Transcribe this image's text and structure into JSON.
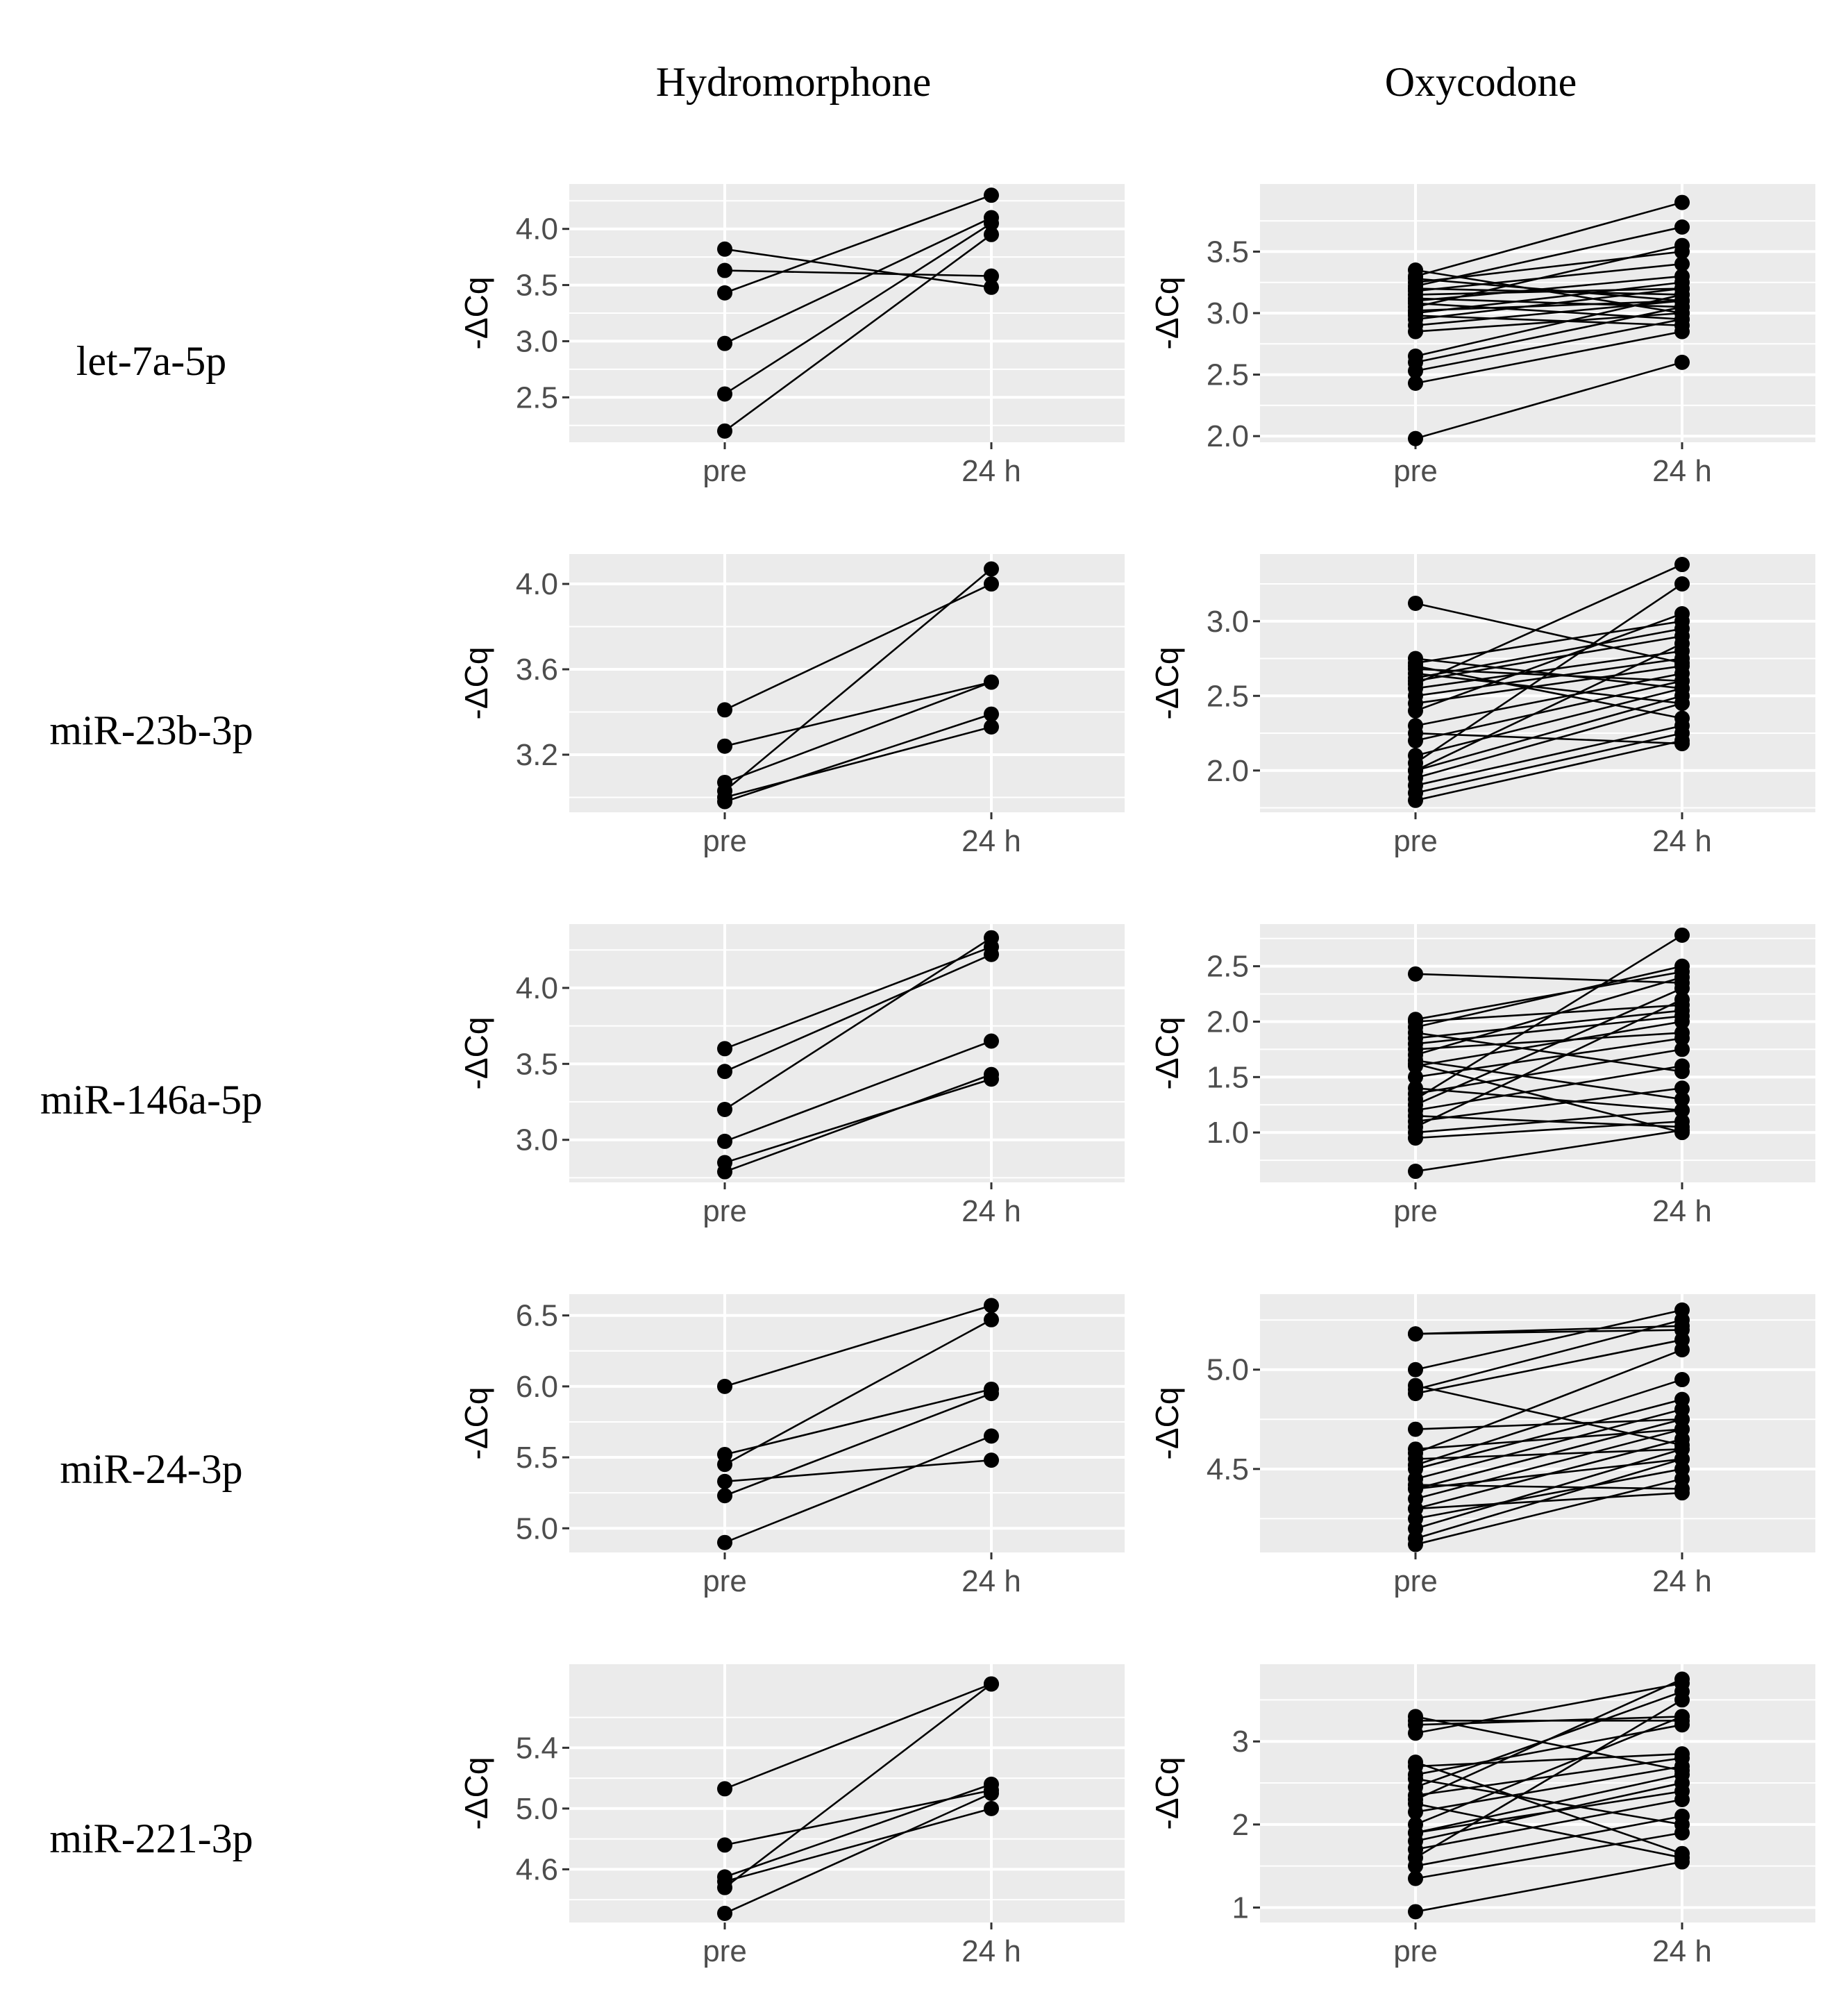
{
  "figure": {
    "columns": [
      "Hydromorphone",
      "Oxycodone"
    ],
    "rows": [
      "let-7a-5p",
      "miR-23b-3p",
      "miR-146a-5p",
      "miR-24-3p",
      "miR-221-3p"
    ]
  },
  "colors": {
    "panel": "#ebebeb",
    "grid": "#ffffff",
    "marks": "#000000",
    "tick_text": "#4d4d4d"
  },
  "chart_data": [
    {
      "type": "line",
      "row": "let-7a-5p",
      "column": "Hydromorphone",
      "categories": [
        "pre",
        "24 h"
      ],
      "ylabel": "-ΔCq",
      "ylim": [
        2.1,
        4.4
      ],
      "yticks": [
        "2.5",
        "3.0",
        "3.5",
        "4.0"
      ],
      "series": [
        [
          2.2,
          3.95
        ],
        [
          2.53,
          4.05
        ],
        [
          2.98,
          4.1
        ],
        [
          3.43,
          4.3
        ],
        [
          3.63,
          3.58
        ],
        [
          3.82,
          3.48
        ]
      ]
    },
    {
      "type": "line",
      "row": "let-7a-5p",
      "column": "Oxycodone",
      "categories": [
        "pre",
        "24 h"
      ],
      "ylabel": "-ΔCq",
      "ylim": [
        1.95,
        4.05
      ],
      "yticks": [
        "2.0",
        "2.5",
        "3.0",
        "3.5"
      ],
      "series": [
        [
          1.98,
          2.6
        ],
        [
          2.43,
          2.85
        ],
        [
          2.53,
          2.95
        ],
        [
          2.6,
          3.05
        ],
        [
          2.65,
          3.15
        ],
        [
          2.85,
          3.0
        ],
        [
          2.9,
          3.1
        ],
        [
          2.95,
          3.2
        ],
        [
          3.0,
          3.25
        ],
        [
          3.02,
          3.1
        ],
        [
          3.05,
          3.55
        ],
        [
          3.08,
          2.95
        ],
        [
          3.1,
          3.3
        ],
        [
          3.12,
          3.05
        ],
        [
          3.15,
          3.2
        ],
        [
          3.18,
          3.4
        ],
        [
          3.2,
          3.15
        ],
        [
          3.22,
          3.7
        ],
        [
          3.25,
          3.5
        ],
        [
          3.28,
          3.1
        ],
        [
          3.3,
          3.9
        ],
        [
          3.35,
          3.0
        ],
        [
          2.98,
          2.9
        ]
      ]
    },
    {
      "type": "line",
      "row": "miR-23b-3p",
      "column": "Hydromorphone",
      "categories": [
        "pre",
        "24 h"
      ],
      "ylabel": "-ΔCq",
      "ylim": [
        2.93,
        4.14
      ],
      "yticks": [
        "3.2",
        "3.6",
        "4.0"
      ],
      "series": [
        [
          2.98,
          3.39
        ],
        [
          3.0,
          3.33
        ],
        [
          3.03,
          4.07
        ],
        [
          3.07,
          3.54
        ],
        [
          3.24,
          3.54
        ],
        [
          3.41,
          4.0
        ]
      ]
    },
    {
      "type": "line",
      "row": "miR-23b-3p",
      "column": "Oxycodone",
      "categories": [
        "pre",
        "24 h"
      ],
      "ylabel": "-ΔCq",
      "ylim": [
        1.72,
        3.45
      ],
      "yticks": [
        "2.0",
        "2.5",
        "3.0"
      ],
      "series": [
        [
          1.8,
          2.2
        ],
        [
          1.85,
          2.25
        ],
        [
          1.9,
          2.3
        ],
        [
          1.95,
          2.45
        ],
        [
          2.0,
          2.5
        ],
        [
          2.05,
          3.25
        ],
        [
          2.1,
          2.55
        ],
        [
          2.2,
          2.6
        ],
        [
          2.3,
          2.65
        ],
        [
          2.4,
          3.05
        ],
        [
          2.45,
          2.7
        ],
        [
          2.5,
          2.75
        ],
        [
          2.55,
          2.8
        ],
        [
          2.58,
          3.38
        ],
        [
          2.6,
          2.9
        ],
        [
          2.62,
          2.95
        ],
        [
          2.65,
          2.45
        ],
        [
          2.7,
          2.35
        ],
        [
          2.72,
          3.0
        ],
        [
          2.75,
          2.55
        ],
        [
          2.68,
          2.6
        ],
        [
          3.12,
          2.72
        ],
        [
          2.0,
          2.85
        ],
        [
          2.25,
          2.18
        ]
      ]
    },
    {
      "type": "line",
      "row": "miR-146a-5p",
      "column": "Hydromorphone",
      "categories": [
        "pre",
        "24 h"
      ],
      "ylabel": "-ΔCq",
      "ylim": [
        2.72,
        4.42
      ],
      "yticks": [
        "3.0",
        "3.5",
        "4.0"
      ],
      "series": [
        [
          2.79,
          3.43
        ],
        [
          2.85,
          3.4
        ],
        [
          2.99,
          3.65
        ],
        [
          3.2,
          4.33
        ],
        [
          3.45,
          4.22
        ],
        [
          3.6,
          4.27
        ]
      ]
    },
    {
      "type": "line",
      "row": "miR-146a-5p",
      "column": "Oxycodone",
      "categories": [
        "pre",
        "24 h"
      ],
      "ylabel": "-ΔCq",
      "ylim": [
        0.55,
        2.88
      ],
      "yticks": [
        "1.0",
        "1.5",
        "2.0",
        "2.5"
      ],
      "series": [
        [
          0.65,
          1.02
        ],
        [
          0.95,
          1.1
        ],
        [
          1.0,
          1.2
        ],
        [
          1.05,
          2.2
        ],
        [
          1.1,
          1.4
        ],
        [
          1.15,
          1.05
        ],
        [
          1.2,
          1.6
        ],
        [
          1.25,
          2.3
        ],
        [
          1.35,
          1.75
        ],
        [
          1.4,
          1.2
        ],
        [
          1.5,
          1.85
        ],
        [
          1.6,
          2.0
        ],
        [
          1.65,
          1.3
        ],
        [
          1.7,
          2.4
        ],
        [
          1.75,
          1.9
        ],
        [
          1.8,
          2.05
        ],
        [
          1.85,
          2.1
        ],
        [
          1.9,
          1.55
        ],
        [
          1.95,
          2.5
        ],
        [
          2.0,
          2.15
        ],
        [
          2.02,
          2.45
        ],
        [
          2.43,
          2.35
        ],
        [
          1.3,
          2.78
        ],
        [
          1.62,
          1.0
        ]
      ]
    },
    {
      "type": "line",
      "row": "miR-24-3p",
      "column": "Hydromorphone",
      "categories": [
        "pre",
        "24 h"
      ],
      "ylabel": "-ΔCq",
      "ylim": [
        4.83,
        6.65
      ],
      "yticks": [
        "5.0",
        "5.5",
        "6.0",
        "6.5"
      ],
      "series": [
        [
          4.9,
          5.65
        ],
        [
          5.23,
          5.95
        ],
        [
          5.33,
          5.48
        ],
        [
          5.45,
          6.47
        ],
        [
          5.52,
          5.98
        ],
        [
          6.0,
          6.57
        ]
      ]
    },
    {
      "type": "line",
      "row": "miR-24-3p",
      "column": "Oxycodone",
      "categories": [
        "pre",
        "24 h"
      ],
      "ylabel": "-ΔCq",
      "ylim": [
        4.08,
        5.38
      ],
      "yticks": [
        "4.5",
        "5.0"
      ],
      "series": [
        [
          4.12,
          4.45
        ],
        [
          4.15,
          4.55
        ],
        [
          4.2,
          4.6
        ],
        [
          4.25,
          4.5
        ],
        [
          4.3,
          4.65
        ],
        [
          4.35,
          4.7
        ],
        [
          4.4,
          4.75
        ],
        [
          4.42,
          4.4
        ],
        [
          4.45,
          4.8
        ],
        [
          4.5,
          4.85
        ],
        [
          4.52,
          4.95
        ],
        [
          4.55,
          4.6
        ],
        [
          4.58,
          5.1
        ],
        [
          4.6,
          4.7
        ],
        [
          4.7,
          4.75
        ],
        [
          4.88,
          5.15
        ],
        [
          4.9,
          5.25
        ],
        [
          4.92,
          4.62
        ],
        [
          5.0,
          5.3
        ],
        [
          5.18,
          5.22
        ],
        [
          5.18,
          5.2
        ],
        [
          4.3,
          4.38
        ],
        [
          4.4,
          4.55
        ]
      ]
    },
    {
      "type": "line",
      "row": "miR-221-3p",
      "column": "Hydromorphone",
      "categories": [
        "pre",
        "24 h"
      ],
      "ylabel": "-ΔCq",
      "ylim": [
        4.25,
        5.95
      ],
      "yticks": [
        "4.6",
        "5.0",
        "5.4"
      ],
      "series": [
        [
          4.31,
          5.1
        ],
        [
          4.48,
          5.82
        ],
        [
          4.52,
          5.0
        ],
        [
          4.55,
          5.16
        ],
        [
          4.76,
          5.12
        ],
        [
          5.13,
          5.82
        ]
      ]
    },
    {
      "type": "line",
      "row": "miR-221-3p",
      "column": "Oxycodone",
      "categories": [
        "pre",
        "24 h"
      ],
      "ylabel": "-ΔCq",
      "ylim": [
        0.82,
        3.93
      ],
      "yticks": [
        "1",
        "2",
        "3"
      ],
      "series": [
        [
          0.95,
          1.55
        ],
        [
          1.35,
          1.9
        ],
        [
          1.5,
          2.1
        ],
        [
          1.6,
          3.5
        ],
        [
          1.7,
          2.3
        ],
        [
          1.8,
          2.5
        ],
        [
          1.9,
          2.6
        ],
        [
          2.0,
          3.3
        ],
        [
          2.15,
          2.7
        ],
        [
          2.25,
          1.6
        ],
        [
          2.35,
          2.8
        ],
        [
          2.45,
          3.6
        ],
        [
          2.55,
          2.0
        ],
        [
          2.6,
          3.2
        ],
        [
          2.7,
          2.85
        ],
        [
          2.75,
          1.65
        ],
        [
          3.1,
          3.7
        ],
        [
          3.2,
          3.3
        ],
        [
          3.25,
          3.25
        ],
        [
          3.3,
          2.65
        ],
        [
          2.3,
          3.75
        ],
        [
          1.9,
          2.4
        ]
      ]
    }
  ]
}
